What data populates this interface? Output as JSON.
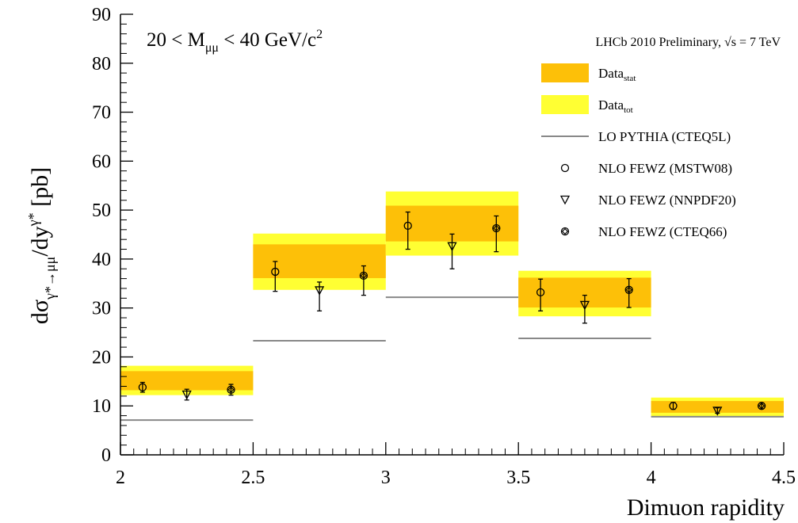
{
  "chart_data": {
    "type": "scatter",
    "title": "",
    "xlabel": "Dimuon rapidity",
    "ylabel_parts": {
      "main": "dσ",
      "sub": "γ*→μμ",
      "mid": "/dy",
      "sup": "γ*",
      "unit": " [pb]"
    },
    "xlim": [
      2,
      4.5
    ],
    "ylim": [
      0,
      90
    ],
    "x_ticks": [
      "2",
      "2.5",
      "3",
      "3.5",
      "4",
      "4.5"
    ],
    "y_ticks": [
      "0",
      "10",
      "20",
      "30",
      "40",
      "50",
      "60",
      "70",
      "80",
      "90"
    ],
    "grid": false,
    "legend_position": "top-right",
    "annotation": {
      "prefix": "20 < M",
      "sub": "μμ",
      "mid": " < 40 GeV/c",
      "sup": "2"
    },
    "lhcb_label": {
      "text": "LHCb 2010 Preliminary, ",
      "root": "√",
      "tail": "s = 7 TeV"
    },
    "legend": [
      {
        "kind": "band-stat",
        "label": "Data",
        "sub": "stat"
      },
      {
        "kind": "band-tot",
        "label": "Data",
        "sub": "tot"
      },
      {
        "kind": "line",
        "label": "LO PYTHIA (CTEQ5L)"
      },
      {
        "kind": "circle",
        "label": "NLO FEWZ (MSTW08)"
      },
      {
        "kind": "triangle",
        "label": "NLO FEWZ (NNPDF20)"
      },
      {
        "kind": "diamond-circle",
        "label": "NLO FEWZ (CTEQ66)"
      }
    ],
    "bins": [
      {
        "range": [
          2.0,
          2.5
        ],
        "tot": [
          12.2,
          18.2
        ],
        "stat": [
          13.2,
          17.1
        ],
        "lo": 7.1,
        "mstw": [
          13.8,
          12.8,
          14.8
        ],
        "nnpdf": [
          12.3,
          11.2,
          13.4
        ],
        "cteq66": [
          13.3,
          12.2,
          14.4
        ]
      },
      {
        "range": [
          2.5,
          3.0
        ],
        "tot": [
          33.7,
          45.2
        ],
        "stat": [
          36.1,
          43.0
        ],
        "lo": 23.3,
        "mstw": [
          37.4,
          33.4,
          39.5
        ],
        "nnpdf": [
          33.6,
          29.4,
          35.3
        ],
        "cteq66": [
          36.6,
          32.6,
          38.6
        ]
      },
      {
        "range": [
          3.0,
          3.5
        ],
        "tot": [
          40.7,
          53.8
        ],
        "stat": [
          43.6,
          50.9
        ],
        "lo": 32.2,
        "mstw": [
          46.8,
          42.0,
          49.6
        ],
        "nnpdf": [
          42.6,
          38.0,
          45.1
        ],
        "cteq66": [
          46.3,
          41.5,
          48.8
        ]
      },
      {
        "range": [
          3.5,
          4.0
        ],
        "tot": [
          28.3,
          37.6
        ],
        "stat": [
          30.1,
          36.2
        ],
        "lo": 23.8,
        "mstw": [
          33.2,
          29.4,
          35.9
        ],
        "nnpdf": [
          30.6,
          26.9,
          32.6
        ],
        "cteq66": [
          33.7,
          30.1,
          36.0
        ]
      },
      {
        "range": [
          4.0,
          4.5
        ],
        "tot": [
          7.8,
          11.7
        ],
        "stat": [
          8.6,
          11.0
        ],
        "lo": 7.8,
        "mstw": [
          10.0,
          9.3,
          10.7
        ],
        "nnpdf": [
          9.0,
          8.5,
          9.6
        ],
        "cteq66": [
          10.0,
          9.4,
          10.6
        ]
      }
    ]
  },
  "colors": {
    "stat_band": "#fdc008",
    "tot_band": "#ffff33",
    "lo_line": "#888888",
    "markers": "#000000"
  }
}
